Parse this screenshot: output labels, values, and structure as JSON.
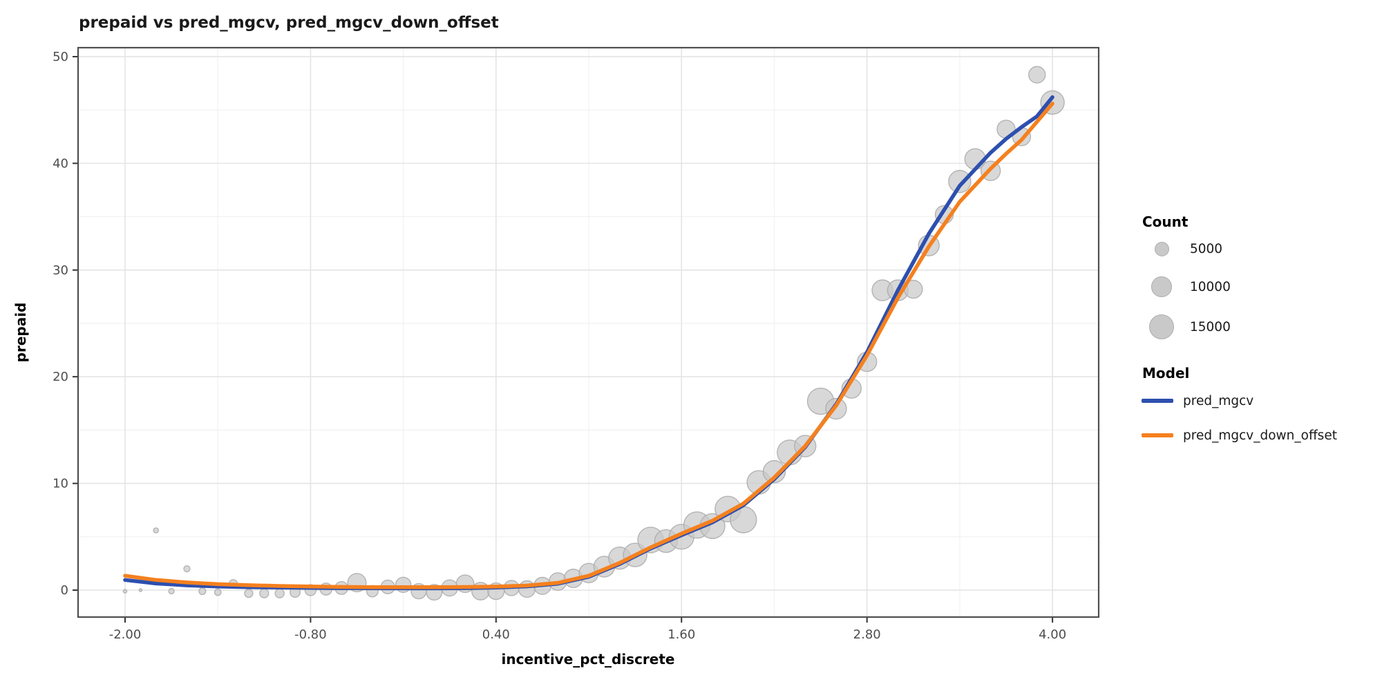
{
  "title": "prepaid vs pred_mgcv, pred_mgcv_down_offset",
  "colors": {
    "pred_mgcv": "#2d4fae",
    "pred_mgcv_down_offset": "#f5801e",
    "bubble_fill": "#c9c9c9",
    "bubble_stroke": "#adadad",
    "grid_major": "#e4e4e4",
    "grid_minor": "#f1f1f1",
    "panel_border": "#4f4f4f",
    "tick_label": "#4d4d4d"
  },
  "chart_data": {
    "type": "scatter",
    "title": "prepaid vs pred_mgcv, pred_mgcv_down_offset",
    "xlabel": "incentive_pct_discrete",
    "ylabel": "prepaid",
    "xlim": [
      -2.304,
      4.299
    ],
    "ylim": [
      -2.525,
      50.84
    ],
    "x_ticks": [
      -2.0,
      -0.8,
      0.4,
      1.6,
      2.8,
      4.0
    ],
    "x_tick_labels": [
      "-2.00",
      "-0.80",
      "0.40",
      "1.60",
      "2.80",
      "4.00"
    ],
    "y_ticks": [
      0,
      10,
      20,
      30,
      40,
      50
    ],
    "y_tick_labels": [
      "0",
      "10",
      "20",
      "30",
      "40",
      "50"
    ],
    "x_minor_ticks": [
      -1.4,
      -0.2,
      1.0,
      2.2,
      3.4
    ],
    "y_minor_ticks": [
      5,
      15,
      25,
      35,
      45
    ],
    "grid": true,
    "legend_position": "right",
    "bubbles": {
      "name": "prepaid (binned counts)",
      "points": [
        [
          -2.0,
          -0.1,
          300
        ],
        [
          -1.9,
          0.0,
          200
        ],
        [
          -1.8,
          5.6,
          600
        ],
        [
          -1.7,
          -0.1,
          700
        ],
        [
          -1.6,
          2.0,
          900
        ],
        [
          -1.5,
          -0.1,
          1100
        ],
        [
          -1.4,
          -0.2,
          1000
        ],
        [
          -1.3,
          0.6,
          1600
        ],
        [
          -1.2,
          -0.3,
          1600
        ],
        [
          -1.1,
          -0.3,
          1900
        ],
        [
          -1.0,
          -0.3,
          1900
        ],
        [
          -0.9,
          -0.2,
          2400
        ],
        [
          -0.8,
          0.0,
          2900
        ],
        [
          -0.7,
          0.1,
          3400
        ],
        [
          -0.6,
          0.2,
          3900
        ],
        [
          -0.5,
          0.7,
          8000
        ],
        [
          -0.4,
          -0.1,
          3100
        ],
        [
          -0.3,
          0.3,
          4500
        ],
        [
          -0.2,
          0.5,
          5500
        ],
        [
          -0.1,
          -0.1,
          5500
        ],
        [
          0.0,
          -0.2,
          5800
        ],
        [
          0.1,
          0.2,
          6200
        ],
        [
          0.2,
          0.6,
          7300
        ],
        [
          0.3,
          -0.1,
          7300
        ],
        [
          0.4,
          -0.1,
          6500
        ],
        [
          0.5,
          0.2,
          5500
        ],
        [
          0.6,
          0.1,
          6500
        ],
        [
          0.7,
          0.4,
          6900
        ],
        [
          0.8,
          0.8,
          7300
        ],
        [
          0.9,
          1.1,
          8000
        ],
        [
          1.0,
          1.6,
          8900
        ],
        [
          1.1,
          2.2,
          10200
        ],
        [
          1.2,
          3.0,
          11600
        ],
        [
          1.3,
          3.3,
          13100
        ],
        [
          1.4,
          4.7,
          15500
        ],
        [
          1.5,
          4.6,
          12300
        ],
        [
          1.6,
          5.0,
          14700
        ],
        [
          1.7,
          6.1,
          16400
        ],
        [
          1.8,
          6.0,
          14700
        ],
        [
          1.9,
          7.6,
          15500
        ],
        [
          2.0,
          6.6,
          16400
        ],
        [
          2.1,
          10.1,
          13100
        ],
        [
          2.2,
          11.1,
          11600
        ],
        [
          2.3,
          12.9,
          14700
        ],
        [
          2.4,
          13.5,
          10900
        ],
        [
          2.5,
          17.7,
          16400
        ],
        [
          2.6,
          17.0,
          10200
        ],
        [
          2.7,
          18.9,
          8900
        ],
        [
          2.8,
          21.4,
          8900
        ],
        [
          2.9,
          28.1,
          10200
        ],
        [
          3.0,
          28.1,
          10200
        ],
        [
          3.1,
          28.2,
          7700
        ],
        [
          3.2,
          32.3,
          10200
        ],
        [
          3.3,
          35.2,
          7700
        ],
        [
          3.4,
          38.3,
          11600
        ],
        [
          3.5,
          40.4,
          10200
        ],
        [
          3.6,
          39.3,
          8900
        ],
        [
          3.7,
          43.2,
          7700
        ],
        [
          3.8,
          42.5,
          7700
        ],
        [
          3.9,
          48.3,
          6500
        ],
        [
          4.0,
          45.7,
          13100
        ]
      ]
    },
    "series": [
      {
        "name": "pred_mgcv",
        "color": "#2d4fae",
        "x": [
          -2.0,
          -1.8,
          -1.6,
          -1.4,
          -1.2,
          -1.0,
          -0.8,
          -0.6,
          -0.4,
          -0.2,
          0.0,
          0.2,
          0.4,
          0.6,
          0.8,
          1.0,
          1.2,
          1.4,
          1.6,
          1.8,
          2.0,
          2.2,
          2.4,
          2.6,
          2.8,
          3.0,
          3.2,
          3.4,
          3.6,
          3.7,
          3.8,
          3.9,
          4.0
        ],
        "y": [
          0.95,
          0.62,
          0.45,
          0.34,
          0.28,
          0.24,
          0.21,
          0.19,
          0.18,
          0.17,
          0.17,
          0.19,
          0.25,
          0.35,
          0.6,
          1.25,
          2.45,
          3.9,
          5.15,
          6.35,
          7.95,
          10.4,
          13.4,
          17.4,
          22.3,
          28.1,
          33.4,
          37.9,
          41.0,
          42.3,
          43.4,
          44.4,
          46.2
        ]
      },
      {
        "name": "pred_mgcv_down_offset",
        "color": "#f5801e",
        "x": [
          -2.0,
          -1.8,
          -1.6,
          -1.4,
          -1.2,
          -1.0,
          -0.8,
          -0.6,
          -0.4,
          -0.2,
          0.0,
          0.2,
          0.4,
          0.6,
          0.8,
          1.0,
          1.2,
          1.4,
          1.6,
          1.8,
          2.0,
          2.2,
          2.4,
          2.6,
          2.8,
          3.0,
          3.2,
          3.4,
          3.6,
          3.7,
          3.8,
          3.9,
          4.0
        ],
        "y": [
          1.35,
          0.95,
          0.72,
          0.56,
          0.46,
          0.39,
          0.34,
          0.3,
          0.28,
          0.27,
          0.27,
          0.29,
          0.33,
          0.43,
          0.68,
          1.35,
          2.55,
          4.0,
          5.3,
          6.5,
          8.1,
          10.55,
          13.5,
          17.3,
          22.0,
          27.4,
          32.2,
          36.4,
          39.5,
          40.9,
          42.2,
          43.9,
          45.6
        ]
      }
    ],
    "legend": {
      "size": {
        "title": "Count",
        "entries": [
          "5000",
          "10000",
          "15000"
        ]
      },
      "color": {
        "title": "Model",
        "entries": [
          "pred_mgcv",
          "pred_mgcv_down_offset"
        ]
      }
    }
  }
}
